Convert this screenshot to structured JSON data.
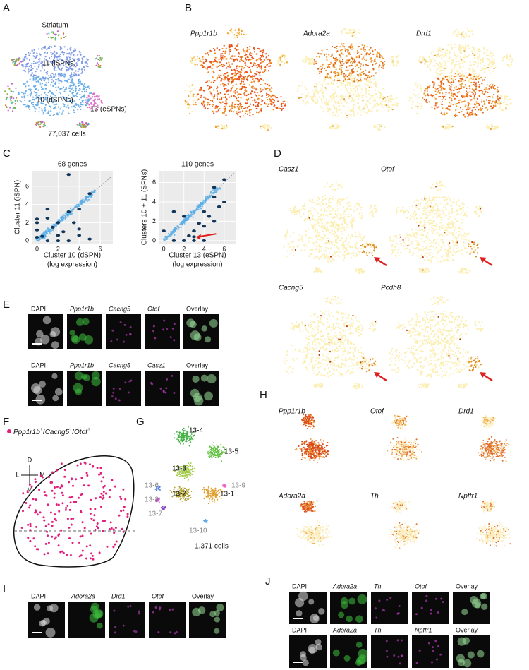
{
  "A": {
    "letter": "A",
    "title": "Striatum",
    "clusters": [
      "11 (iSPNs)",
      "10 (dSPNs)",
      "13 (eSPNs)"
    ],
    "cells": "77,037 cells"
  },
  "B": {
    "letter": "B",
    "genes": [
      "Ppp1r1b",
      "Adora2a",
      "Drd1"
    ]
  },
  "C": {
    "letter": "C",
    "plots": [
      {
        "title": "68 genes",
        "ylabel": "Cluster 11 (iSPN)",
        "xlabel": [
          "Cluster 10 (dSPN)",
          "(log expression)"
        ],
        "xlim": [
          -0.5,
          7.2
        ],
        "ylim": [
          -0.3,
          7.7
        ],
        "xticks": [
          0,
          2,
          4,
          6
        ],
        "yticks": [
          0,
          2,
          4,
          6
        ],
        "points": [
          [
            3.0,
            7.3
          ],
          [
            0,
            2.4
          ],
          [
            0,
            2.0
          ],
          [
            0,
            1.2
          ],
          [
            1,
            3.5
          ],
          [
            1,
            2.5
          ],
          [
            2,
            2.0
          ],
          [
            2,
            0.6
          ],
          [
            3,
            3.2
          ],
          [
            4,
            0.6
          ],
          [
            4,
            1.3
          ],
          [
            5,
            0.2
          ],
          [
            1,
            0
          ],
          [
            2,
            0
          ],
          [
            3,
            0
          ],
          [
            0.5,
            0.5
          ],
          [
            4,
            3.5
          ],
          [
            5,
            5.2
          ],
          [
            1.5,
            1.5
          ],
          [
            0,
            0.4
          ],
          [
            2.5,
            1.0
          ],
          [
            3.5,
            2.0
          ]
        ]
      },
      {
        "title": "110 genes",
        "ylabel": "Clusters 10 + 11 (SPNs)",
        "xlabel": [
          "Cluster 13 (eSPN)",
          "(log expression)"
        ],
        "xlim": [
          -0.5,
          7.2
        ],
        "ylim": [
          -0.3,
          7.2
        ],
        "xticks": [
          0,
          2,
          4,
          6
        ],
        "yticks": [
          0,
          2,
          4,
          6
        ],
        "points": [
          [
            6,
            6.3
          ],
          [
            5,
            5.5
          ],
          [
            4,
            3
          ],
          [
            4,
            1.5
          ],
          [
            5,
            2
          ],
          [
            3,
            1
          ],
          [
            2,
            0
          ],
          [
            3,
            0
          ],
          [
            4,
            0
          ],
          [
            2.5,
            0.5
          ],
          [
            1,
            3
          ],
          [
            0,
            1
          ],
          [
            1,
            0
          ],
          [
            6,
            4
          ],
          [
            5,
            4.5
          ],
          [
            4.5,
            2.5
          ],
          [
            3.5,
            1.8
          ],
          [
            5.5,
            3.5
          ],
          [
            2,
            2.5
          ],
          [
            3,
            0.4
          ]
        ]
      }
    ]
  },
  "D": {
    "letter": "D",
    "genes": [
      "Casz1",
      "Otof",
      "Cacng5",
      "Pcdh8"
    ]
  },
  "E": {
    "letter": "E",
    "rows": [
      [
        "DAPI",
        "Ppp1r1b",
        "Cacng5",
        "Otof",
        "Overlay"
      ],
      [
        "DAPI",
        "Ppp1r1b",
        "Cacng5",
        "Casz1",
        "Overlay"
      ]
    ]
  },
  "F": {
    "letter": "F",
    "legend": [
      "Ppp1r1b",
      "+",
      "/",
      "Cacng5",
      "+",
      "/",
      "Otof",
      "+"
    ],
    "compass": [
      "D",
      "V",
      "L",
      "M"
    ]
  },
  "G": {
    "letter": "G",
    "clusters": [
      "13-4",
      "13-5",
      "13-3",
      "13-9",
      "13-6",
      "13-8",
      "13-2",
      "13-1",
      "13-7",
      "13-10"
    ],
    "cells": "1,371 cells"
  },
  "H": {
    "letter": "H",
    "genes": [
      "Ppp1r1b",
      "Otof",
      "Drd1",
      "Adora2a",
      "Th",
      "Npffr1"
    ]
  },
  "I": {
    "letter": "I",
    "row": [
      "DAPI",
      "Adora2a",
      "Drd1",
      "Otof",
      "Overlay"
    ]
  },
  "J": {
    "letter": "J",
    "rows": [
      [
        "DAPI",
        "Adora2a",
        "Th",
        "Otof",
        "Overlay"
      ],
      [
        "DAPI",
        "Adora2a",
        "Th",
        "Npffr1",
        "Overlay"
      ]
    ]
  }
}
